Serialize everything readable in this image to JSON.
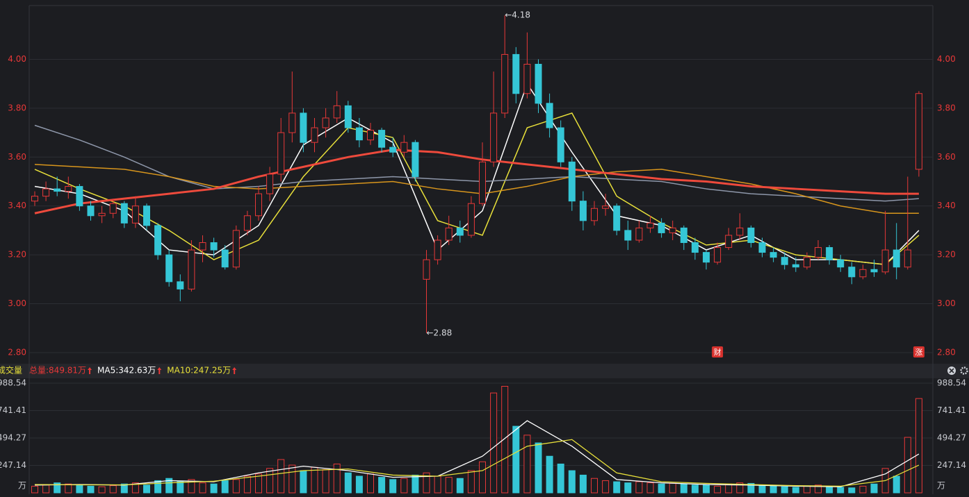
{
  "chart_data": [
    {
      "type": "candlestick",
      "ylim": [
        2.78,
        4.22
      ],
      "yticks": [
        {
          "value": 2.8,
          "label": "2.80"
        },
        {
          "value": 3.0,
          "label": "3.00"
        },
        {
          "value": 3.2,
          "label": "3.20"
        },
        {
          "value": 3.4,
          "label": "3.40"
        },
        {
          "value": 3.6,
          "label": "3.60"
        },
        {
          "value": 3.8,
          "label": "3.80"
        },
        {
          "value": 4.0,
          "label": "4.00"
        }
      ],
      "up_color": "#e83838",
      "down_color": "#35c6d6",
      "ohlc": [
        [
          3.42,
          3.46,
          3.4,
          3.44
        ],
        [
          3.44,
          3.5,
          3.42,
          3.47
        ],
        [
          3.47,
          3.52,
          3.44,
          3.46
        ],
        [
          3.46,
          3.52,
          3.43,
          3.48
        ],
        [
          3.48,
          3.49,
          3.38,
          3.4
        ],
        [
          3.4,
          3.42,
          3.34,
          3.36
        ],
        [
          3.36,
          3.4,
          3.33,
          3.37
        ],
        [
          3.37,
          3.43,
          3.35,
          3.41
        ],
        [
          3.41,
          3.42,
          3.31,
          3.33
        ],
        [
          3.33,
          3.44,
          3.31,
          3.4
        ],
        [
          3.4,
          3.41,
          3.3,
          3.32
        ],
        [
          3.32,
          3.33,
          3.18,
          3.2
        ],
        [
          3.2,
          3.22,
          3.07,
          3.09
        ],
        [
          3.09,
          3.12,
          3.01,
          3.06
        ],
        [
          3.06,
          3.26,
          3.05,
          3.22
        ],
        [
          3.22,
          3.28,
          3.17,
          3.25
        ],
        [
          3.25,
          3.27,
          3.19,
          3.22
        ],
        [
          3.22,
          3.24,
          3.14,
          3.15
        ],
        [
          3.15,
          3.32,
          3.14,
          3.3
        ],
        [
          3.3,
          3.38,
          3.28,
          3.36
        ],
        [
          3.36,
          3.48,
          3.34,
          3.45
        ],
        [
          3.45,
          3.56,
          3.42,
          3.53
        ],
        [
          3.53,
          3.76,
          3.5,
          3.7
        ],
        [
          3.7,
          3.95,
          3.66,
          3.78
        ],
        [
          3.78,
          3.8,
          3.62,
          3.66
        ],
        [
          3.66,
          3.76,
          3.62,
          3.72
        ],
        [
          3.72,
          3.8,
          3.68,
          3.76
        ],
        [
          3.76,
          3.87,
          3.74,
          3.81
        ],
        [
          3.81,
          3.83,
          3.7,
          3.72
        ],
        [
          3.72,
          3.76,
          3.64,
          3.67
        ],
        [
          3.67,
          3.74,
          3.65,
          3.71
        ],
        [
          3.71,
          3.72,
          3.62,
          3.64
        ],
        [
          3.64,
          3.68,
          3.6,
          3.62
        ],
        [
          3.62,
          3.69,
          3.6,
          3.66
        ],
        [
          3.66,
          3.67,
          3.5,
          3.52
        ],
        [
          3.1,
          3.22,
          2.88,
          3.18
        ],
        [
          3.18,
          3.28,
          3.16,
          3.26
        ],
        [
          3.26,
          3.36,
          3.24,
          3.31
        ],
        [
          3.31,
          3.34,
          3.25,
          3.28
        ],
        [
          3.28,
          3.44,
          3.27,
          3.41
        ],
        [
          3.41,
          3.66,
          3.4,
          3.58
        ],
        [
          3.58,
          3.95,
          3.56,
          3.78
        ],
        [
          3.78,
          4.18,
          3.76,
          4.02
        ],
        [
          4.02,
          4.05,
          3.82,
          3.86
        ],
        [
          3.86,
          4.11,
          3.84,
          3.98
        ],
        [
          3.98,
          4.0,
          3.78,
          3.82
        ],
        [
          3.82,
          3.86,
          3.68,
          3.72
        ],
        [
          3.72,
          3.75,
          3.56,
          3.58
        ],
        [
          3.58,
          3.6,
          3.38,
          3.42
        ],
        [
          3.42,
          3.46,
          3.3,
          3.34
        ],
        [
          3.34,
          3.42,
          3.32,
          3.39
        ],
        [
          3.39,
          3.45,
          3.36,
          3.4
        ],
        [
          3.4,
          3.41,
          3.28,
          3.3
        ],
        [
          3.3,
          3.34,
          3.22,
          3.26
        ],
        [
          3.26,
          3.34,
          3.25,
          3.31
        ],
        [
          3.31,
          3.36,
          3.29,
          3.33
        ],
        [
          3.33,
          3.35,
          3.27,
          3.29
        ],
        [
          3.29,
          3.34,
          3.26,
          3.31
        ],
        [
          3.31,
          3.32,
          3.22,
          3.25
        ],
        [
          3.25,
          3.27,
          3.18,
          3.21
        ],
        [
          3.21,
          3.22,
          3.14,
          3.17
        ],
        [
          3.17,
          3.25,
          3.16,
          3.23
        ],
        [
          3.23,
          3.31,
          3.22,
          3.28
        ],
        [
          3.28,
          3.37,
          3.26,
          3.31
        ],
        [
          3.31,
          3.32,
          3.23,
          3.25
        ],
        [
          3.25,
          3.27,
          3.19,
          3.21
        ],
        [
          3.21,
          3.23,
          3.17,
          3.19
        ],
        [
          3.19,
          3.21,
          3.14,
          3.16
        ],
        [
          3.16,
          3.19,
          3.13,
          3.15
        ],
        [
          3.15,
          3.21,
          3.14,
          3.19
        ],
        [
          3.19,
          3.26,
          3.18,
          3.23
        ],
        [
          3.23,
          3.24,
          3.16,
          3.18
        ],
        [
          3.18,
          3.2,
          3.13,
          3.15
        ],
        [
          3.15,
          3.17,
          3.08,
          3.11
        ],
        [
          3.11,
          3.16,
          3.1,
          3.14
        ],
        [
          3.14,
          3.18,
          3.11,
          3.13
        ],
        [
          3.13,
          3.38,
          3.12,
          3.22
        ],
        [
          3.22,
          3.33,
          3.1,
          3.15
        ],
        [
          3.15,
          3.52,
          3.14,
          3.22
        ],
        [
          3.55,
          3.87,
          3.52,
          3.86
        ]
      ],
      "lines": [
        {
          "color": "#ffffff",
          "x": [
            0,
            4,
            8,
            12,
            16,
            20,
            24,
            28,
            32,
            36,
            40,
            44,
            48,
            52,
            56,
            60,
            64,
            68,
            72,
            76,
            79
          ],
          "values": [
            3.48,
            3.45,
            3.38,
            3.22,
            3.2,
            3.32,
            3.65,
            3.76,
            3.66,
            3.22,
            3.38,
            3.9,
            3.62,
            3.36,
            3.32,
            3.22,
            3.28,
            3.18,
            3.18,
            3.16,
            3.3
          ]
        },
        {
          "color": "#e8e03a",
          "x": [
            0,
            4,
            8,
            12,
            16,
            20,
            24,
            28,
            32,
            36,
            40,
            44,
            48,
            52,
            56,
            60,
            64,
            68,
            72,
            76,
            79
          ],
          "values": [
            3.55,
            3.47,
            3.4,
            3.3,
            3.18,
            3.26,
            3.52,
            3.72,
            3.68,
            3.34,
            3.28,
            3.72,
            3.78,
            3.44,
            3.33,
            3.24,
            3.26,
            3.2,
            3.18,
            3.16,
            3.28
          ]
        },
        {
          "color": "#8e97aa",
          "x": [
            0,
            4,
            8,
            12,
            16,
            20,
            24,
            28,
            32,
            36,
            40,
            44,
            48,
            52,
            56,
            60,
            64,
            68,
            72,
            76,
            79
          ],
          "values": [
            3.73,
            3.67,
            3.6,
            3.52,
            3.47,
            3.48,
            3.5,
            3.51,
            3.52,
            3.51,
            3.5,
            3.51,
            3.52,
            3.51,
            3.5,
            3.47,
            3.45,
            3.44,
            3.43,
            3.42,
            3.43
          ]
        },
        {
          "color": "#d9961c",
          "x": [
            0,
            4,
            8,
            12,
            16,
            20,
            24,
            28,
            32,
            36,
            40,
            44,
            48,
            52,
            56,
            60,
            64,
            68,
            72,
            76,
            79
          ],
          "values": [
            3.57,
            3.56,
            3.55,
            3.52,
            3.48,
            3.47,
            3.48,
            3.49,
            3.5,
            3.47,
            3.45,
            3.48,
            3.52,
            3.54,
            3.55,
            3.52,
            3.49,
            3.45,
            3.4,
            3.37,
            3.37
          ]
        },
        {
          "color": "#ee4a3c",
          "x": [
            0,
            4,
            8,
            12,
            16,
            20,
            24,
            28,
            32,
            36,
            40,
            44,
            48,
            52,
            56,
            60,
            64,
            68,
            72,
            76,
            79
          ],
          "values": [
            3.37,
            3.41,
            3.43,
            3.45,
            3.47,
            3.52,
            3.56,
            3.6,
            3.63,
            3.62,
            3.59,
            3.57,
            3.55,
            3.53,
            3.51,
            3.5,
            3.48,
            3.47,
            3.46,
            3.45,
            3.45
          ]
        }
      ],
      "annotations": [
        {
          "text": "←4.18",
          "x": 42,
          "y": 4.18
        },
        {
          "text": "←2.88",
          "x": 35,
          "y": 2.88
        }
      ],
      "markers": [
        {
          "text": "财",
          "x": 61
        },
        {
          "text": "涨",
          "x": 79
        }
      ]
    },
    {
      "type": "bar",
      "title": "成交量",
      "unit": "万",
      "stats": [
        {
          "text": "总量:849.81万",
          "color": "#e83838"
        },
        {
          "text": "MA5:342.63万",
          "color": "#ffffff"
        },
        {
          "text": "MA10:247.25万",
          "color": "#e8e03a"
        }
      ],
      "ylim": [
        0,
        1032
      ],
      "yticks": [
        247.14,
        494.27,
        741.41,
        988.54
      ],
      "up_color": "#e83838",
      "down_color": "#35c6d6",
      "values": [
        60,
        70,
        90,
        80,
        70,
        60,
        55,
        65,
        80,
        90,
        70,
        110,
        130,
        100,
        120,
        90,
        80,
        110,
        120,
        150,
        170,
        220,
        300,
        250,
        200,
        230,
        210,
        260,
        180,
        150,
        170,
        140,
        120,
        130,
        160,
        180,
        150,
        140,
        130,
        200,
        280,
        900,
        960,
        600,
        520,
        450,
        330,
        260,
        200,
        160,
        130,
        110,
        100,
        90,
        100,
        90,
        80,
        85,
        80,
        70,
        75,
        60,
        80,
        90,
        85,
        70,
        60,
        55,
        50,
        60,
        70,
        55,
        50,
        45,
        60,
        80,
        220,
        150,
        500,
        849.81
      ],
      "lines": [
        {
          "color": "#ffffff",
          "x": [
            0,
            4,
            8,
            12,
            16,
            20,
            24,
            28,
            32,
            36,
            40,
            44,
            48,
            52,
            56,
            60,
            64,
            68,
            72,
            76,
            79
          ],
          "values": [
            70,
            75,
            70,
            110,
            100,
            180,
            240,
            200,
            140,
            150,
            330,
            650,
            420,
            120,
            90,
            75,
            70,
            60,
            55,
            170,
            350
          ]
        },
        {
          "color": "#e8e03a",
          "x": [
            0,
            4,
            8,
            12,
            16,
            20,
            24,
            28,
            32,
            36,
            40,
            44,
            48,
            52,
            56,
            60,
            64,
            68,
            72,
            76,
            79
          ],
          "values": [
            75,
            72,
            72,
            90,
            105,
            150,
            200,
            215,
            160,
            150,
            200,
            420,
            480,
            180,
            100,
            85,
            75,
            65,
            60,
            110,
            250
          ]
        }
      ]
    }
  ]
}
